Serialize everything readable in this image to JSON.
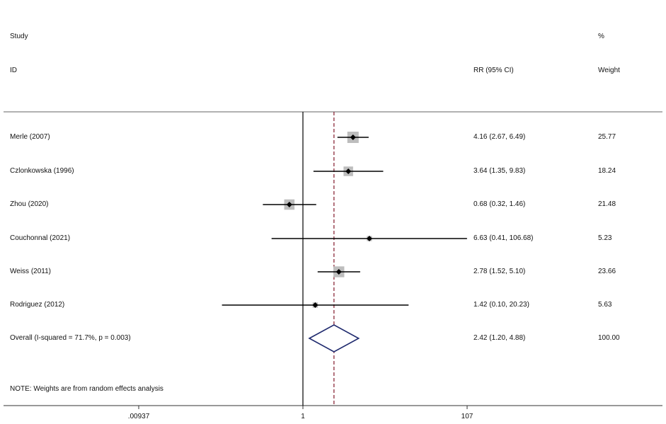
{
  "header": {
    "study_line1": "Study",
    "study_line2": "ID",
    "ci_header": "RR (95% CI)",
    "weight_line1": "%",
    "weight_line2": "Weight"
  },
  "note": "NOTE: Weights are from random effects analysis",
  "chart_data": {
    "type": "forest",
    "scale": "log",
    "x_ticks": [
      0.00937,
      1,
      107
    ],
    "x_tick_labels": [
      ".00937",
      "1",
      "107"
    ],
    "xlim": [
      0.00937,
      107
    ],
    "null_line": 1,
    "overall_line": 2.42,
    "studies": [
      {
        "label": "Merle (2007)",
        "rr": 4.16,
        "lo": 2.67,
        "hi": 6.49,
        "ci_text": "4.16 (2.67, 6.49)",
        "weight": 25.77,
        "weight_text": "25.77"
      },
      {
        "label": "Czlonkowska  (1996)",
        "rr": 3.64,
        "lo": 1.35,
        "hi": 9.83,
        "ci_text": "3.64 (1.35, 9.83)",
        "weight": 18.24,
        "weight_text": "18.24"
      },
      {
        "label": "Zhou (2020)",
        "rr": 0.68,
        "lo": 0.32,
        "hi": 1.46,
        "ci_text": "0.68 (0.32, 1.46)",
        "weight": 21.48,
        "weight_text": "21.48"
      },
      {
        "label": "Couchonnal (2021)",
        "rr": 6.63,
        "lo": 0.41,
        "hi": 106.68,
        "ci_text": "6.63 (0.41, 106.68)",
        "weight": 5.23,
        "weight_text": "5.23"
      },
      {
        "label": "Weiss (2011)",
        "rr": 2.78,
        "lo": 1.52,
        "hi": 5.1,
        "ci_text": "2.78 (1.52, 5.10)",
        "weight": 23.66,
        "weight_text": "23.66"
      },
      {
        "label": "Rodriguez (2012)",
        "rr": 1.42,
        "lo": 0.1,
        "hi": 20.23,
        "ci_text": "1.42 (0.10, 20.23)",
        "weight": 5.63,
        "weight_text": "5.63"
      }
    ],
    "overall": {
      "label": "Overall  (I-squared = 71.7%, p = 0.003)",
      "rr": 2.42,
      "lo": 1.2,
      "hi": 4.88,
      "ci_text": "2.42 (1.20, 4.88)",
      "weight_text": "100.00"
    }
  }
}
